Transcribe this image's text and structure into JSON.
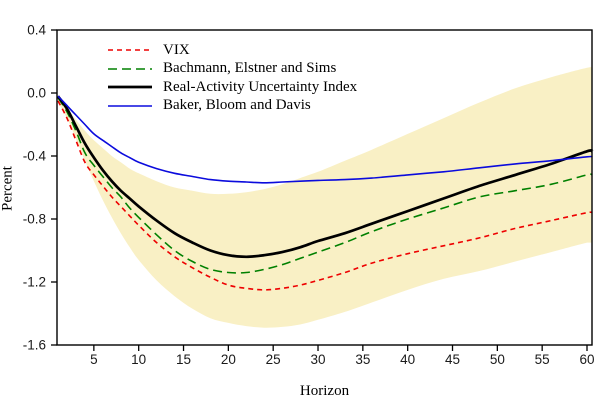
{
  "figure": {
    "x_axis_label": "Horizon",
    "y_axis_label": "Percent",
    "background_color": "#ffffff",
    "axis_color": "#000000"
  },
  "chart_data": {
    "type": "line",
    "title": "",
    "xlabel": "Horizon",
    "ylabel": "Percent",
    "xlim": [
      1,
      60
    ],
    "ylim": [
      -1.6,
      0.4
    ],
    "grid": false,
    "legend_position": "top-left-inside",
    "x_ticks": [
      5,
      10,
      15,
      20,
      25,
      30,
      35,
      40,
      45,
      50,
      55,
      60
    ],
    "y_ticks": [
      0.4,
      0.0,
      -0.4,
      -0.8,
      -1.2,
      -1.6
    ],
    "y_tick_labels": [
      "0.4",
      "0.0",
      "-0.4",
      "-0.8",
      "-1.2",
      "-1.6"
    ],
    "x": [
      1,
      2,
      3,
      4,
      5,
      6,
      7,
      8,
      9,
      10,
      12,
      14,
      16,
      18,
      20,
      22,
      24,
      26,
      28,
      30,
      33,
      36,
      40,
      44,
      48,
      52,
      56,
      60
    ],
    "series": [
      {
        "name": "VIX",
        "color": "#ee0000",
        "dash": "5 4",
        "width": 1.6,
        "values": [
          -0.05,
          -0.16,
          -0.3,
          -0.44,
          -0.52,
          -0.59,
          -0.66,
          -0.72,
          -0.78,
          -0.84,
          -0.95,
          -1.04,
          -1.11,
          -1.17,
          -1.22,
          -1.24,
          -1.25,
          -1.24,
          -1.22,
          -1.19,
          -1.14,
          -1.08,
          -1.02,
          -0.97,
          -0.92,
          -0.86,
          -0.81,
          -0.76
        ]
      },
      {
        "name": "Bachmann, Elstner and Sims",
        "color": "#008000",
        "dash": "9 5",
        "width": 1.6,
        "values": [
          -0.03,
          -0.12,
          -0.24,
          -0.38,
          -0.46,
          -0.53,
          -0.6,
          -0.66,
          -0.73,
          -0.79,
          -0.9,
          -1.0,
          -1.07,
          -1.12,
          -1.14,
          -1.14,
          -1.12,
          -1.09,
          -1.05,
          -1.01,
          -0.95,
          -0.88,
          -0.8,
          -0.73,
          -0.66,
          -0.62,
          -0.58,
          -0.52
        ]
      },
      {
        "name": "Real-Activity Uncertainty Index",
        "color": "#000000",
        "dash": "",
        "width": 2.7,
        "values": [
          -0.02,
          -0.1,
          -0.21,
          -0.32,
          -0.41,
          -0.49,
          -0.56,
          -0.62,
          -0.67,
          -0.72,
          -0.81,
          -0.89,
          -0.95,
          -1.0,
          -1.03,
          -1.04,
          -1.03,
          -1.01,
          -0.98,
          -0.94,
          -0.89,
          -0.83,
          -0.75,
          -0.67,
          -0.59,
          -0.52,
          -0.45,
          -0.37
        ]
      },
      {
        "name": "Baker, Bloom and Davis",
        "color": "#0b0bdd",
        "dash": "",
        "width": 1.6,
        "values": [
          -0.02,
          -0.08,
          -0.14,
          -0.2,
          -0.26,
          -0.3,
          -0.34,
          -0.38,
          -0.41,
          -0.44,
          -0.48,
          -0.51,
          -0.53,
          -0.55,
          -0.56,
          -0.565,
          -0.57,
          -0.565,
          -0.56,
          -0.555,
          -0.55,
          -0.54,
          -0.52,
          -0.5,
          -0.475,
          -0.45,
          -0.43,
          -0.405
        ]
      }
    ],
    "band": {
      "name": "confidence-band",
      "fill": "#f9f0c5",
      "top": [
        -0.04,
        -0.1,
        -0.17,
        -0.24,
        -0.3,
        -0.35,
        -0.4,
        -0.44,
        -0.48,
        -0.51,
        -0.56,
        -0.6,
        -0.62,
        -0.64,
        -0.64,
        -0.63,
        -0.61,
        -0.58,
        -0.54,
        -0.5,
        -0.43,
        -0.36,
        -0.26,
        -0.16,
        -0.06,
        0.03,
        0.1,
        0.16
      ],
      "bottom": [
        -0.06,
        -0.16,
        -0.29,
        -0.43,
        -0.56,
        -0.68,
        -0.79,
        -0.89,
        -0.98,
        -1.06,
        -1.19,
        -1.29,
        -1.37,
        -1.43,
        -1.46,
        -1.48,
        -1.49,
        -1.485,
        -1.47,
        -1.44,
        -1.39,
        -1.33,
        -1.25,
        -1.18,
        -1.13,
        -1.07,
        -1.01,
        -0.95
      ]
    }
  }
}
